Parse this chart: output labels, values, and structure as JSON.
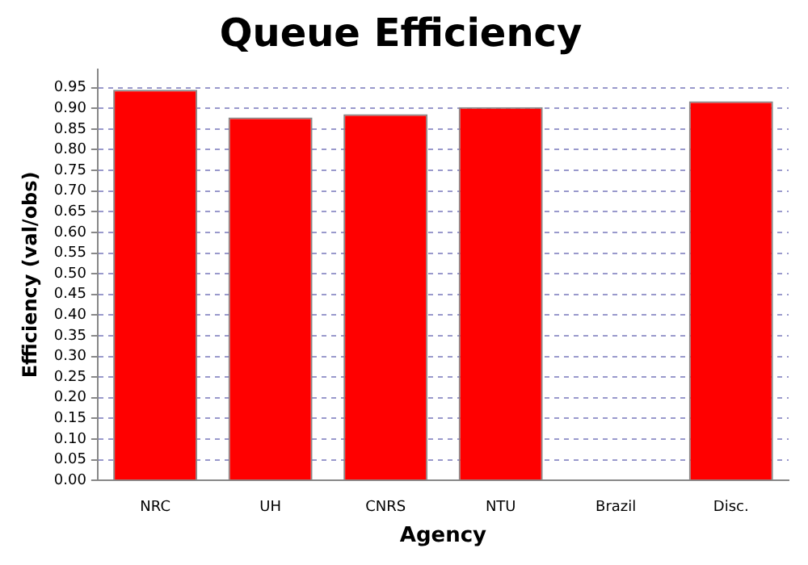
{
  "chart_data": {
    "type": "bar",
    "title": "Queue Efficiency",
    "xlabel": "Agency",
    "ylabel": "Efficiency (val/obs)",
    "categories": [
      "NRC",
      "UH",
      "CNRS",
      "NTU",
      "Brazil",
      "Disc."
    ],
    "values": [
      0.945,
      0.878,
      0.886,
      0.903,
      null,
      0.917
    ],
    "color": "#ff0000",
    "ylim": [
      0,
      0.995
    ],
    "yticks": [
      {
        "value": 0,
        "label": "0.00"
      },
      {
        "value": 0.05,
        "label": "0.05"
      },
      {
        "value": 0.1,
        "label": "0.10"
      },
      {
        "value": 0.15,
        "label": "0.15"
      },
      {
        "value": 0.2,
        "label": "0.20"
      },
      {
        "value": 0.25,
        "label": "0.25"
      },
      {
        "value": 0.3,
        "label": "0.30"
      },
      {
        "value": 0.35,
        "label": "0.35"
      },
      {
        "value": 0.4,
        "label": "0.40"
      },
      {
        "value": 0.45,
        "label": "0.45"
      },
      {
        "value": 0.5,
        "label": "0.50"
      },
      {
        "value": 0.55,
        "label": "0.55"
      },
      {
        "value": 0.6,
        "label": "0.60"
      },
      {
        "value": 0.65,
        "label": "0.65"
      },
      {
        "value": 0.7,
        "label": "0.70"
      },
      {
        "value": 0.75,
        "label": "0.75"
      },
      {
        "value": 0.8,
        "label": "0.80"
      },
      {
        "value": 0.85,
        "label": "0.85"
      },
      {
        "value": 0.9,
        "label": "0.90"
      },
      {
        "value": 0.95,
        "label": "0.95"
      }
    ],
    "grid": "y",
    "legend": false
  }
}
